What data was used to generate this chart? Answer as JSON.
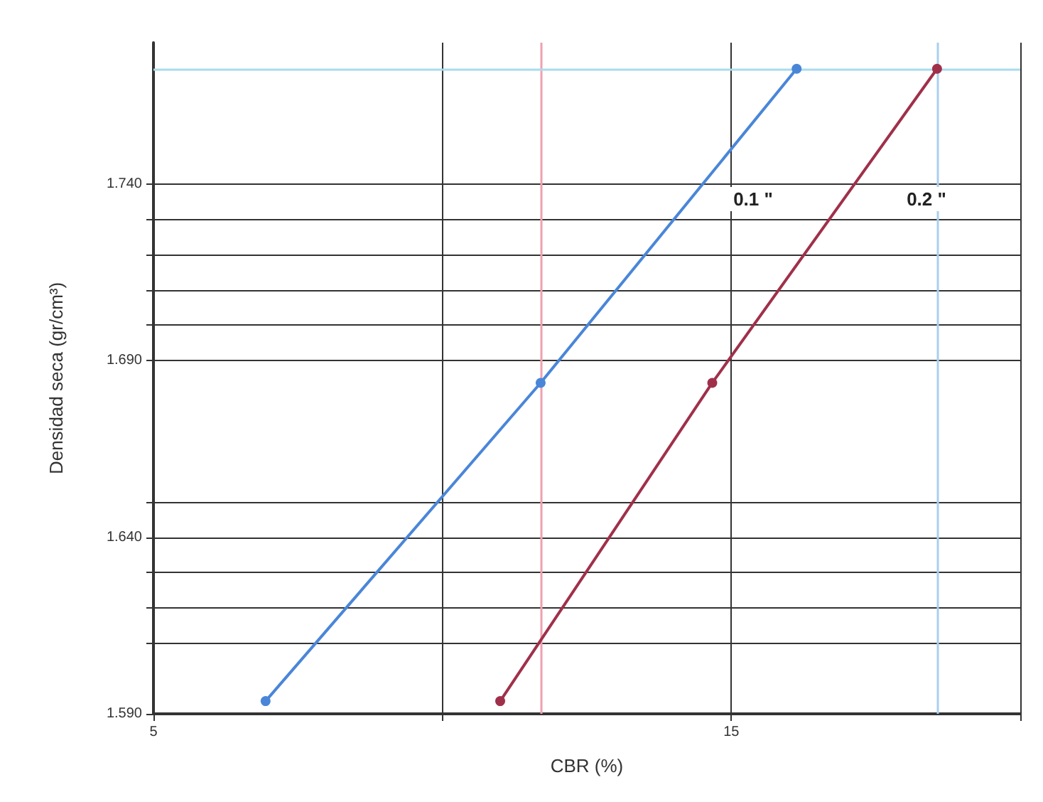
{
  "chart_data": {
    "type": "line",
    "xlabel": "CBR (%)",
    "ylabel": "Densidad seca (gr/cm³)",
    "xlim": [
      5,
      20
    ],
    "xticks": [
      5,
      {
        "value": 10,
        "label": null
      },
      15,
      {
        "value": 20,
        "label": null
      }
    ],
    "ylim": [
      1.59,
      1.78
    ],
    "yticks": [
      {
        "value": 1.59,
        "label": "1.590"
      },
      {
        "value": 1.61,
        "label": null
      },
      {
        "value": 1.62,
        "label": null
      },
      {
        "value": 1.63,
        "label": null
      },
      {
        "value": 1.64,
        "label": "1.640"
      },
      {
        "value": 1.65,
        "label": null
      },
      {
        "value": 1.69,
        "label": "1.690"
      },
      {
        "value": 1.7,
        "label": null
      },
      {
        "value": 1.71,
        "label": null
      },
      {
        "value": 1.72,
        "label": null
      },
      {
        "value": 1.73,
        "label": null
      },
      {
        "value": 1.74,
        "label": "1.740"
      }
    ],
    "grid": true,
    "marker": "circle",
    "line_style": "solid",
    "series": [
      {
        "color": "#4a86d8",
        "x": [
          6.94,
          11.7,
          16.13
        ],
        "values": [
          1.5936,
          1.6837,
          1.7726
        ]
      },
      {
        "color": "#a0304a",
        "x": [
          11.0,
          14.67,
          18.56
        ],
        "values": [
          1.5936,
          1.6837,
          1.7726
        ]
      }
    ],
    "ref_lines": [
      {
        "axis": "x",
        "value": 11.7,
        "color": "#f0a0b0"
      },
      {
        "axis": "x",
        "value": 18.56,
        "color": "#a8cff0"
      },
      {
        "axis": "y",
        "value": 1.7726,
        "color": "#a8dcec"
      }
    ],
    "annotations": [
      "0.1 \"",
      "0.2 \""
    ]
  }
}
